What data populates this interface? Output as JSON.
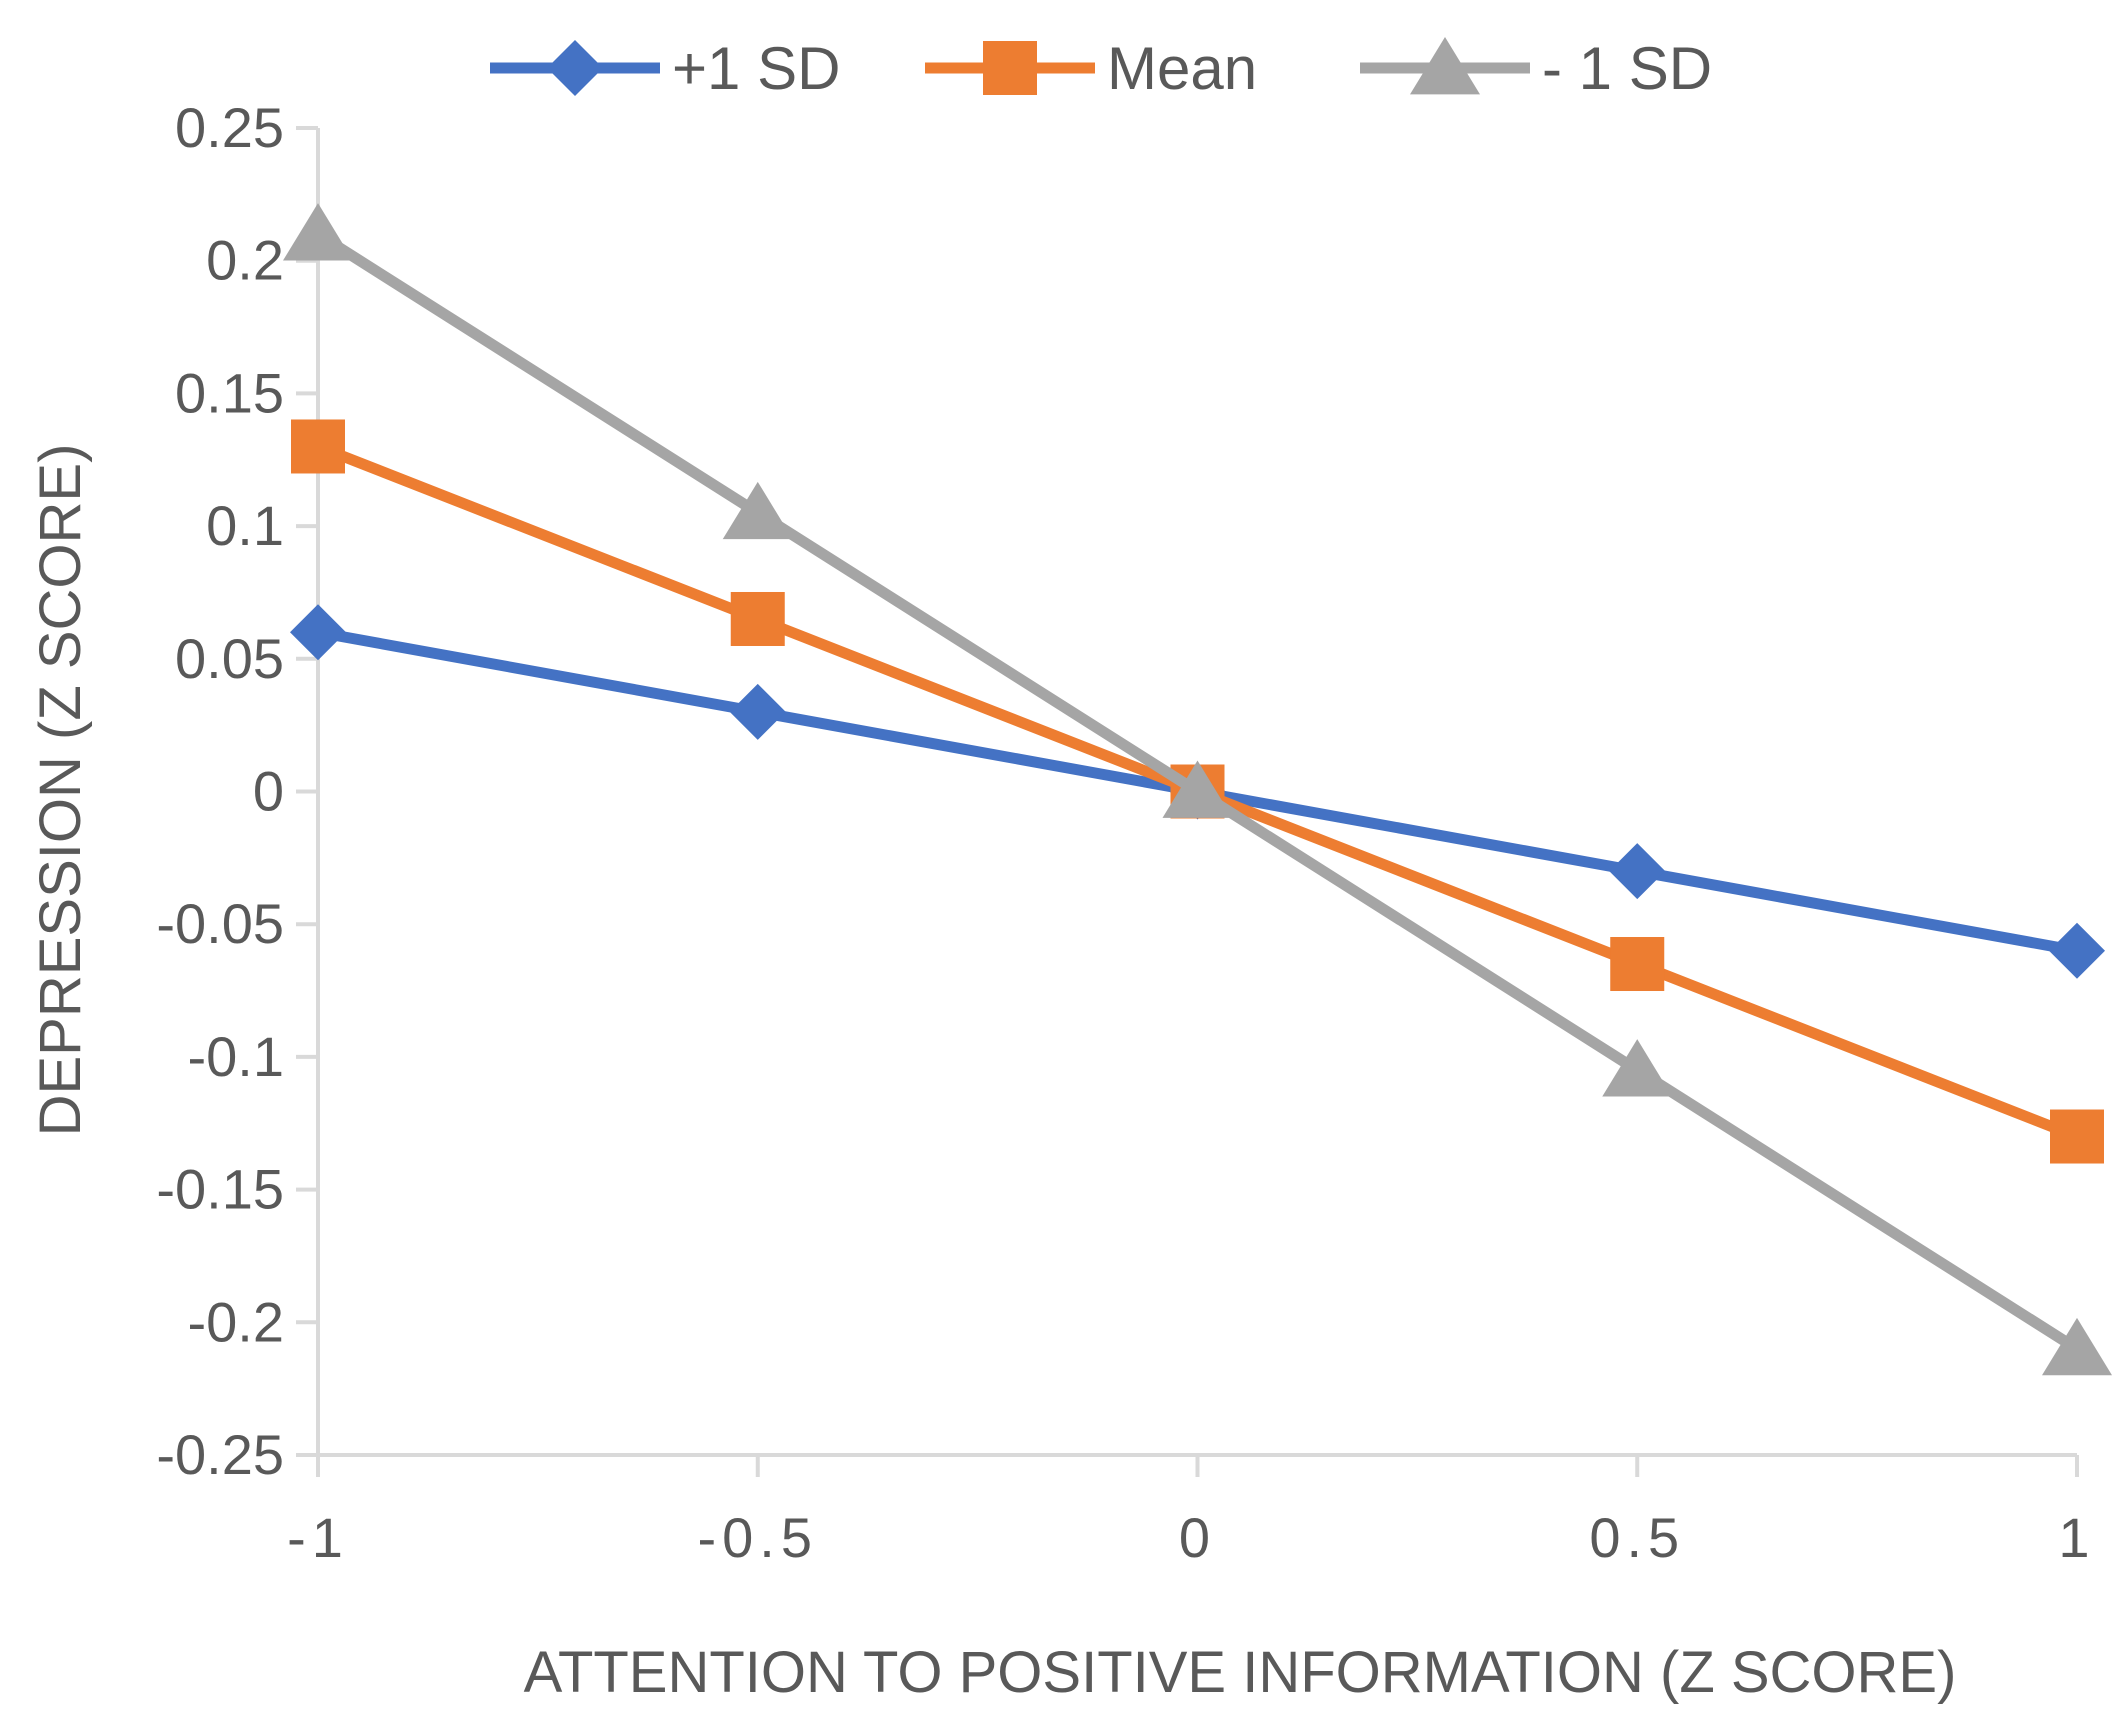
{
  "chart_data": {
    "type": "line",
    "title": "",
    "xlabel": "ATTENTION TO POSITIVE INFORMATION (Z SCORE)",
    "ylabel": "DEPRESSION (Z SCORE)",
    "x": [
      -1,
      -0.5,
      0,
      0.5,
      1
    ],
    "x_tick_labels": [
      "-1",
      "-0.5",
      "0",
      "0.5",
      "1"
    ],
    "y_tick_labels": [
      "0.25",
      "0.2",
      "0.15",
      "0.1",
      "0.05",
      "0",
      "-0.05",
      "-0.1",
      "-0.15",
      "-0.2",
      "-0.25"
    ],
    "ylim": [
      -0.25,
      0.25
    ],
    "xlim": [
      -1,
      1
    ],
    "grid": false,
    "legend_position": "top",
    "series": [
      {
        "name": "+1 SD",
        "values": [
          0.06,
          0.03,
          0,
          -0.03,
          -0.06
        ],
        "color": "#4472C4",
        "marker": "diamond"
      },
      {
        "name": "Mean",
        "values": [
          0.13,
          0.065,
          0,
          -0.065,
          -0.13
        ],
        "color": "#ED7D31",
        "marker": "square"
      },
      {
        "name": "- 1 SD",
        "values": [
          0.21,
          0.105,
          0,
          -0.105,
          -0.21
        ],
        "color": "#A5A5A5",
        "marker": "triangle"
      }
    ]
  }
}
